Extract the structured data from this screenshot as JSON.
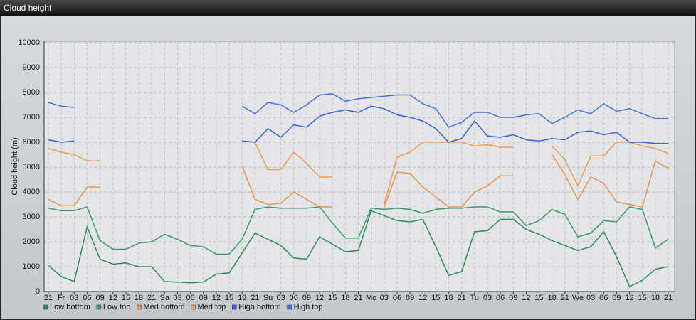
{
  "chart_data": {
    "type": "line",
    "title": "Cloud height",
    "ylabel": "Cloud height (m)",
    "categories": [
      "21",
      "Fr",
      "03",
      "06",
      "09",
      "12",
      "15",
      "18",
      "21",
      "Sa",
      "03",
      "06",
      "09",
      "12",
      "15",
      "18",
      "21",
      "Su",
      "03",
      "06",
      "09",
      "12",
      "15",
      "18",
      "21",
      "Mo",
      "03",
      "06",
      "09",
      "12",
      "15",
      "18",
      "21",
      "Tu",
      "03",
      "06",
      "09",
      "12",
      "15",
      "18",
      "21",
      "We",
      "03",
      "06",
      "09",
      "12",
      "15",
      "18",
      "21"
    ],
    "ylim": [
      0,
      10000
    ],
    "yticks": [
      0,
      1000,
      2000,
      3000,
      4000,
      5000,
      6000,
      7000,
      8000,
      9000,
      10000
    ],
    "grid": true,
    "legend": "bottom-left",
    "series": [
      {
        "name": "Low bottom",
        "color": "#2e8b57",
        "values": [
          1050,
          600,
          400,
          2600,
          1300,
          1100,
          1150,
          1000,
          1000,
          400,
          380,
          350,
          380,
          700,
          750,
          1550,
          2350,
          2100,
          1850,
          1350,
          1300,
          2200,
          1900,
          1600,
          1650,
          3250,
          3050,
          2850,
          2800,
          2900,
          1800,
          650,
          800,
          2400,
          2450,
          2900,
          2900,
          2500,
          2300,
          2050,
          1850,
          1650,
          1800,
          2400,
          1400,
          200,
          450,
          900,
          1000
        ]
      },
      {
        "name": "Low top",
        "color": "#3a9a66",
        "values": [
          3350,
          3250,
          3250,
          3400,
          2050,
          1700,
          1700,
          1950,
          2000,
          2300,
          2100,
          1850,
          1800,
          1500,
          1500,
          2100,
          3300,
          3400,
          3350,
          3350,
          3350,
          3400,
          2750,
          2150,
          2150,
          3350,
          3300,
          3350,
          3300,
          3150,
          3300,
          3350,
          3350,
          3400,
          3400,
          3200,
          3200,
          2650,
          2850,
          3300,
          3100,
          2200,
          2350,
          2850,
          2800,
          3400,
          3300,
          1750,
          2100
        ]
      },
      {
        "name": "Med bottom",
        "color": "#e8924a",
        "values": [
          3700,
          3450,
          3450,
          4200,
          4200,
          null,
          null,
          null,
          null,
          null,
          null,
          null,
          null,
          null,
          null,
          5050,
          3700,
          3500,
          3550,
          4000,
          3700,
          3400,
          3400,
          null,
          null,
          null,
          3400,
          4800,
          4750,
          4200,
          3800,
          3400,
          3400,
          4000,
          4250,
          4650,
          4650,
          null,
          null,
          5500,
          4700,
          3700,
          4600,
          4350,
          3600,
          3500,
          3400,
          5250,
          4950
        ]
      },
      {
        "name": "Med top",
        "color": "#f09a50",
        "values": [
          5750,
          5600,
          5500,
          5250,
          5250,
          null,
          null,
          null,
          null,
          null,
          null,
          null,
          null,
          null,
          null,
          6050,
          6000,
          4900,
          4900,
          5600,
          5150,
          4600,
          4600,
          null,
          null,
          null,
          3500,
          5400,
          5600,
          6000,
          6000,
          6000,
          6000,
          5850,
          5900,
          5800,
          5800,
          null,
          null,
          5850,
          5300,
          4250,
          5450,
          5450,
          6000,
          6000,
          5850,
          5750,
          5550
        ]
      },
      {
        "name": "High bottom",
        "color": "#3a5fd8",
        "values": [
          6100,
          6000,
          6050,
          null,
          null,
          null,
          null,
          null,
          null,
          null,
          null,
          null,
          null,
          null,
          null,
          6050,
          6000,
          6550,
          6200,
          6700,
          6600,
          7050,
          7200,
          7300,
          7200,
          7450,
          7350,
          7100,
          7000,
          6850,
          6550,
          6000,
          6150,
          6850,
          6250,
          6200,
          6300,
          6100,
          6050,
          6150,
          6100,
          6400,
          6450,
          6300,
          6400,
          6000,
          6000,
          5950,
          5950
        ]
      },
      {
        "name": "High top",
        "color": "#4a6ee6",
        "values": [
          7600,
          7450,
          7400,
          null,
          null,
          null,
          null,
          null,
          null,
          null,
          null,
          null,
          null,
          null,
          null,
          7450,
          7150,
          7600,
          7500,
          7200,
          7500,
          7900,
          7950,
          7650,
          7750,
          7800,
          7850,
          7900,
          7900,
          7550,
          7350,
          6600,
          6800,
          7200,
          7200,
          7000,
          7000,
          7100,
          7150,
          6750,
          7000,
          7300,
          7150,
          7550,
          7250,
          7350,
          7150,
          6950,
          6950
        ]
      }
    ]
  }
}
